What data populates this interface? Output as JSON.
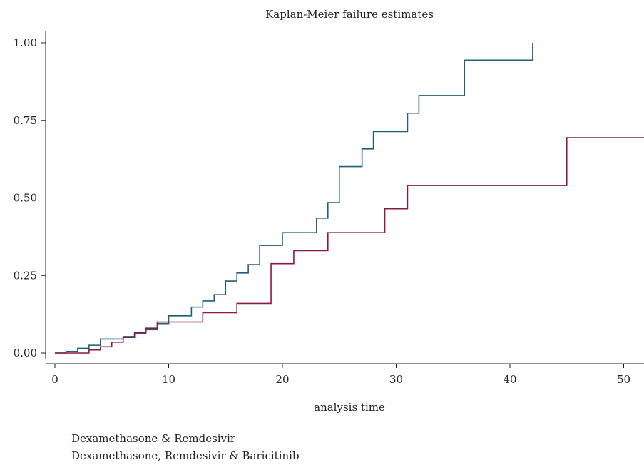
{
  "chart_data": {
    "type": "line",
    "title": "Kaplan-Meier failure estimates",
    "xlabel": "analysis time",
    "ylabel": "",
    "xlim": [
      0,
      52
    ],
    "ylim": [
      0,
      1
    ],
    "x_ticks": [
      0,
      10,
      20,
      30,
      40,
      50
    ],
    "y_ticks": [
      0,
      0.25,
      0.5,
      0.75,
      1.0
    ],
    "x_tick_labels": [
      "0",
      "10",
      "20",
      "30",
      "40",
      "50"
    ],
    "y_tick_labels": [
      "0.00",
      "0.25",
      "0.50",
      "0.75",
      "1.00"
    ],
    "grid": false,
    "legend_position": "bottom-left",
    "step": true,
    "series": [
      {
        "name": "Dexamethasone & Remdesivir",
        "color": "#1f5f7a",
        "x": [
          0,
          1,
          2,
          3,
          4,
          6,
          7,
          8,
          9,
          10,
          12,
          13,
          14,
          15,
          16,
          17,
          18,
          20,
          23,
          24,
          25,
          27,
          28,
          31,
          32,
          36,
          42,
          42
        ],
        "y": [
          0,
          0.005,
          0.015,
          0.025,
          0.045,
          0.053,
          0.063,
          0.075,
          0.095,
          0.12,
          0.148,
          0.168,
          0.188,
          0.232,
          0.258,
          0.285,
          0.347,
          0.388,
          0.435,
          0.485,
          0.601,
          0.658,
          0.714,
          0.773,
          0.83,
          0.944,
          0.944,
          1.0
        ]
      },
      {
        "name": "Dexamethasone, Remdesivir & Baricitinib",
        "color": "#8b1a3c",
        "x": [
          0,
          3,
          4,
          5,
          6,
          7,
          8,
          9,
          10,
          13,
          16,
          19,
          21,
          24,
          29,
          31,
          45,
          52
        ],
        "y": [
          0,
          0.01,
          0.02,
          0.035,
          0.05,
          0.065,
          0.08,
          0.1,
          0.1,
          0.13,
          0.16,
          0.288,
          0.33,
          0.388,
          0.465,
          0.54,
          0.694,
          0.694
        ]
      }
    ]
  }
}
